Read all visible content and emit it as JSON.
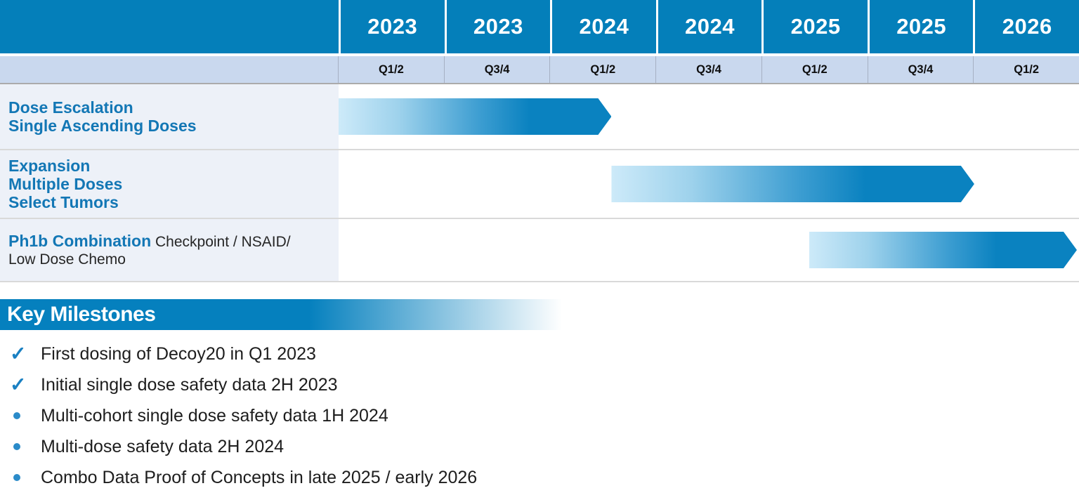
{
  "palette": {
    "header_blue": "#047fba",
    "quarter_band_blue": "#c9d8ee",
    "label_column_bg": "#edf1f8",
    "label_text_blue": "#1377b5",
    "bar_gradient_start": "#cdeaf9",
    "bar_gradient_end": "#0a82c0",
    "banner_blue": "#0580be",
    "milestone_text": "#1d1d1d",
    "check_blue": "#1a80c2",
    "row_divider_gray": "#d9d9d9"
  },
  "timeline": {
    "years": [
      "2023",
      "2023",
      "2024",
      "2024",
      "2025",
      "2025",
      "2026"
    ],
    "quarters": [
      "Q1/2",
      "Q3/4",
      "Q1/2",
      "Q3/4",
      "Q1/2",
      "Q3/4",
      "Q1/2"
    ],
    "rows": [
      {
        "id": "dose-escalation",
        "label_lines": [
          "Dose Escalation",
          "Single Ascending Doses"
        ]
      },
      {
        "id": "expansion",
        "label_lines": [
          "Expansion",
          "Multiple Doses",
          "Select Tumors"
        ]
      },
      {
        "id": "ph1b-combination",
        "label_bold": "Ph1b Combination",
        "label_regular": " Checkpoint / NSAID/ Low Dose Chemo"
      }
    ]
  },
  "chart_data": {
    "type": "bar",
    "subtype": "gantt-timeline",
    "title": "",
    "columns": [
      {
        "year": "2023",
        "half": "Q1/2"
      },
      {
        "year": "2023",
        "half": "Q3/4"
      },
      {
        "year": "2024",
        "half": "Q1/2"
      },
      {
        "year": "2024",
        "half": "Q3/4"
      },
      {
        "year": "2025",
        "half": "Q1/2"
      },
      {
        "year": "2025",
        "half": "Q3/4"
      },
      {
        "year": "2026",
        "half": "Q1/2"
      }
    ],
    "unit_note": "start/end measured in half-year column units; 0 = left edge of 2023 Q1/2, 7 = right edge of 2026 Q1/2",
    "bars": [
      {
        "row": 0,
        "task": "Dose Escalation / Single Ascending Doses",
        "start": 0.0,
        "end": 2.58,
        "period": "Q1 2023 to early 1H 2024"
      },
      {
        "row": 1,
        "task": "Expansion / Multiple Doses / Select Tumors",
        "start": 2.58,
        "end": 6.01,
        "period": "1H 2024 to end of 2025"
      },
      {
        "row": 2,
        "task": "Ph1b Combination (Checkpoint / NSAID / Low Dose Chemo)",
        "start": 4.45,
        "end": 6.98,
        "period": "mid 2025 through 1H 2026"
      }
    ]
  },
  "milestones": {
    "heading": "Key Milestones",
    "items": [
      {
        "marker": "check",
        "text": "First dosing of Decoy20 in Q1 2023"
      },
      {
        "marker": "check",
        "text": "Initial single dose safety data 2H 2023"
      },
      {
        "marker": "dot",
        "text": "Multi-cohort single dose safety data 1H 2024"
      },
      {
        "marker": "dot",
        "text": "Multi-dose safety data 2H 2024"
      },
      {
        "marker": "dot",
        "text": "Combo Data Proof of Concepts in late 2025 / early 2026"
      }
    ]
  }
}
